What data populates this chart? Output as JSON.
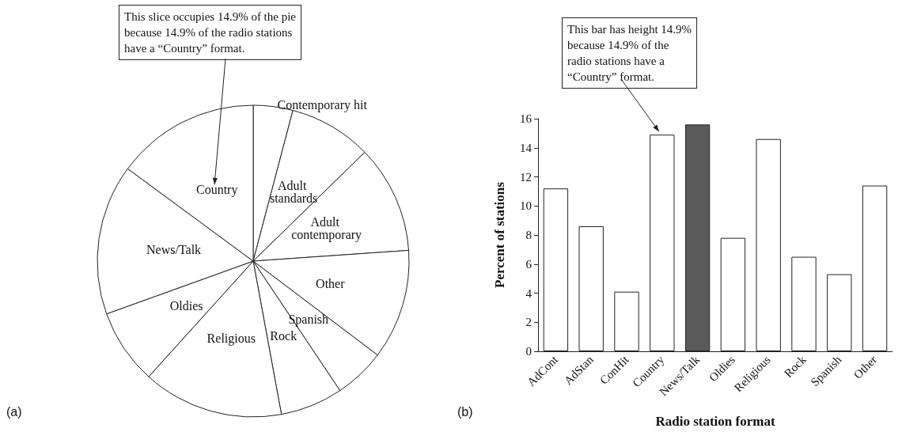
{
  "chart_data": [
    {
      "type": "pie",
      "categories": [
        "Contemporary hit",
        "Adult standards",
        "Adult contemporary",
        "Other",
        "Spanish",
        "Rock",
        "Religious",
        "Oldies",
        "News/Talk",
        "Country"
      ],
      "values": [
        4.1,
        8.6,
        11.2,
        11.4,
        5.3,
        6.5,
        14.6,
        7.8,
        15.6,
        14.9
      ],
      "colors": [
        "#ffffff",
        "#ffffff",
        "#ffffff",
        "#ffffff",
        "#ffffff",
        "#ffffff",
        "#ffffff",
        "#ffffff",
        "#ffffff",
        "#ffffff"
      ],
      "annotations": [
        {
          "text": "This slice occupies 14.9% of the pie\nbecause 14.9% of the radio stations\nhave a “Country” format.",
          "x": "Country"
        },
        "(a)"
      ]
    },
    {
      "type": "bar",
      "categories": [
        "AdCont",
        "AdStan",
        "ConHit",
        "Country",
        "News/Talk",
        "Oldies",
        "Religious",
        "Rock",
        "Spanish",
        "Other"
      ],
      "values": [
        11.2,
        8.6,
        4.1,
        14.9,
        15.6,
        7.8,
        14.6,
        6.5,
        5.3,
        11.4
      ],
      "colors": [
        "#ffffff",
        "#ffffff",
        "#ffffff",
        "#ffffff",
        "#5a5a5a",
        "#ffffff",
        "#ffffff",
        "#ffffff",
        "#ffffff",
        "#ffffff"
      ],
      "xlabel": "Radio station format",
      "ylabel": "Percent of stations",
      "ylim": [
        0,
        16
      ],
      "yticks": [
        0,
        2,
        4,
        6,
        8,
        10,
        12,
        14,
        16
      ],
      "annotations": [
        {
          "text": "This bar has height 14.9%\nbecause 14.9% of the\nradio stations have a\n“Country” format.",
          "x": "Country",
          "y": 14.9
        },
        "(b)"
      ]
    }
  ]
}
